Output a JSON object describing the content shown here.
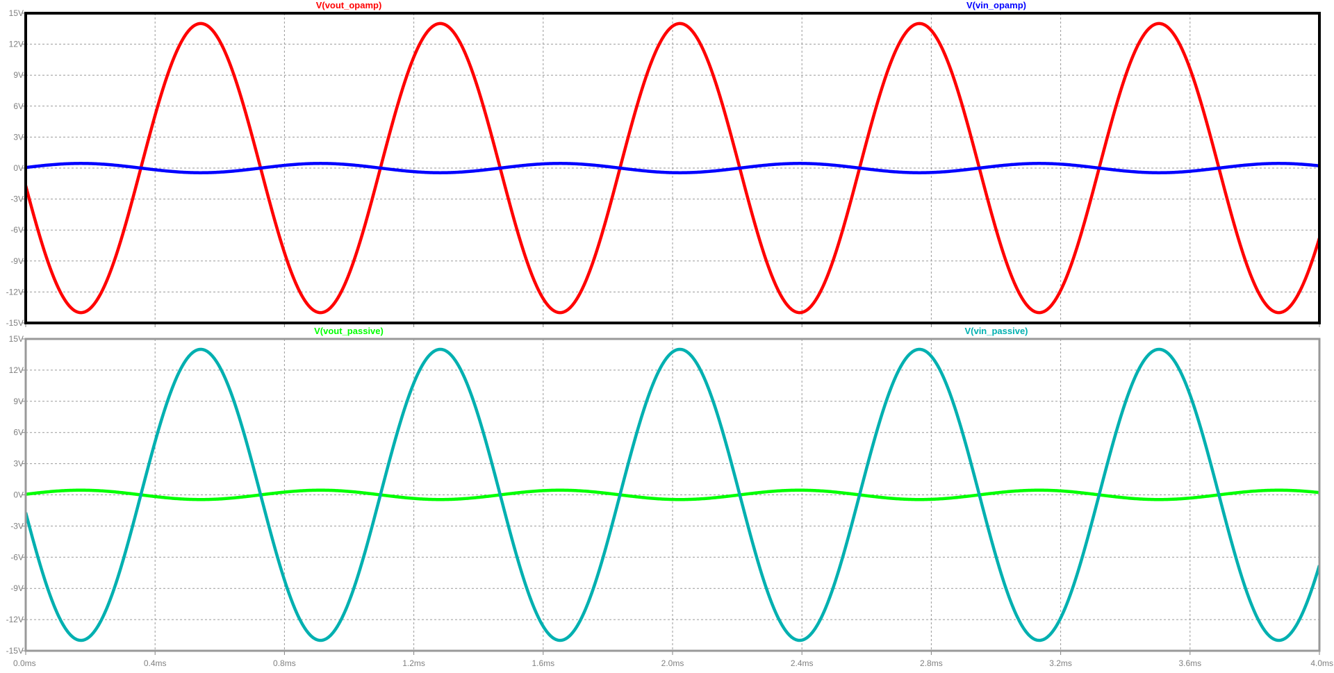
{
  "chart_data": [
    {
      "type": "line",
      "panel": "top",
      "frame_color": "#000000",
      "grid": true,
      "xlim": [
        0,
        4.0
      ],
      "ylim": [
        -15,
        15
      ],
      "x_unit": "ms",
      "y_unit": "V",
      "x_ticks": [
        0.0,
        0.4,
        0.8,
        1.2,
        1.6,
        2.0,
        2.4,
        2.8,
        3.2,
        3.6,
        4.0
      ],
      "x_tick_labels": [
        "",
        "0.4ms",
        "0.8ms",
        "1.2ms",
        "1.6ms",
        "2.0ms",
        "2.4ms",
        "2.8ms",
        "3.2ms",
        "3.6ms",
        ""
      ],
      "y_ticks": [
        15,
        12,
        9,
        6,
        3,
        0,
        -3,
        -6,
        -9,
        -12,
        -15
      ],
      "y_tick_labels": [
        "15V",
        "12V",
        "9V",
        "6V",
        "3V",
        "0V",
        "-3V",
        "-6V",
        "-9V",
        "-12V",
        "-15V"
      ],
      "series": [
        {
          "name": "V(vout_opamp)",
          "color": "#ff0000",
          "waveform": "sine",
          "amplitude": 14,
          "frequency_khz": 1.35,
          "phase_deg": 187,
          "offset": 0
        },
        {
          "name": "V(vin_opamp)",
          "color": "#0000ff",
          "waveform": "sine",
          "amplitude": 0.45,
          "frequency_khz": 1.35,
          "phase_deg": 7,
          "offset": 0
        }
      ]
    },
    {
      "type": "line",
      "panel": "bottom",
      "frame_color": "#999999",
      "grid": true,
      "xlim": [
        0,
        4.0
      ],
      "ylim": [
        -15,
        15
      ],
      "x_unit": "ms",
      "y_unit": "V",
      "x_ticks": [
        0.0,
        0.4,
        0.8,
        1.2,
        1.6,
        2.0,
        2.4,
        2.8,
        3.2,
        3.6,
        4.0
      ],
      "x_tick_labels": [
        "0.0ms",
        "0.4ms",
        "0.8ms",
        "1.2ms",
        "1.6ms",
        "2.0ms",
        "2.4ms",
        "2.8ms",
        "3.2ms",
        "3.6ms",
        "4.0ms"
      ],
      "y_ticks": [
        15,
        12,
        9,
        6,
        3,
        0,
        -3,
        -6,
        -9,
        -12,
        -15
      ],
      "y_tick_labels": [
        "15V",
        "12V",
        "9V",
        "6V",
        "3V",
        "0V",
        "-3V",
        "-6V",
        "-9V",
        "-12V",
        "-15V"
      ],
      "series": [
        {
          "name": "V(vout_passive)",
          "color": "#00ff00",
          "waveform": "sine",
          "amplitude": 0.45,
          "frequency_khz": 1.35,
          "phase_deg": 7,
          "offset": 0
        },
        {
          "name": "V(vin_passive)",
          "color": "#00b0b0",
          "waveform": "sine",
          "amplitude": 14,
          "frequency_khz": 1.35,
          "phase_deg": 187,
          "offset": 0
        }
      ]
    }
  ]
}
